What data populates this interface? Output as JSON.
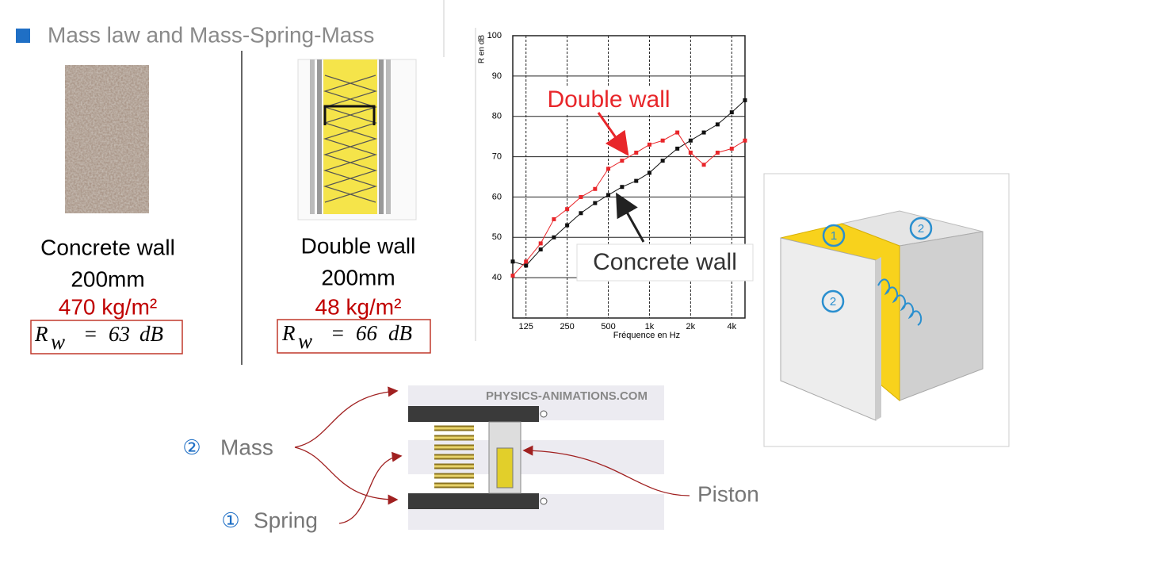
{
  "header": {
    "title": "Mass law and Mass-Spring-Mass"
  },
  "walls": [
    {
      "name": "Concrete wall",
      "thickness": "200mm",
      "mass": "470 kg/m²",
      "formula": {
        "symbol": "R",
        "subscript": "w",
        "equals": "=",
        "value": "63",
        "unit": "dB"
      }
    },
    {
      "name": "Double wall",
      "thickness": "200mm",
      "mass": "48 kg/m²",
      "formula": {
        "symbol": "R",
        "subscript": "w",
        "equals": "=",
        "value": "66",
        "unit": "dB"
      }
    }
  ],
  "chart_data": {
    "type": "line",
    "y_label": "R en dB",
    "x_label": "Fréquence en Hz",
    "log_x": true,
    "grid": true,
    "x": [
      100,
      125,
      160,
      200,
      250,
      315,
      400,
      500,
      630,
      800,
      1000,
      1250,
      1600,
      2000,
      2500,
      3150,
      4000,
      5000
    ],
    "xlim": [
      100,
      5000
    ],
    "xticks": [
      125,
      250,
      500,
      {
        "value": 1000,
        "label": "1k"
      },
      {
        "value": 2000,
        "label": "2k"
      },
      {
        "value": 4000,
        "label": "4k"
      }
    ],
    "ylim": [
      30,
      100
    ],
    "yticks": [
      40,
      50,
      60,
      70,
      80,
      90,
      100
    ],
    "series": [
      {
        "name": "Concrete wall",
        "color": "#111111",
        "values": [
          44,
          43,
          47,
          50,
          53,
          56,
          58.5,
          60.5,
          62.5,
          64,
          66,
          69,
          72,
          74,
          76,
          78,
          81,
          84
        ]
      },
      {
        "name": "Double wall",
        "color": "#e8262a",
        "values": [
          40.5,
          44,
          48.5,
          54.5,
          57,
          60,
          62,
          67,
          69,
          71,
          73,
          74,
          76,
          71,
          68,
          71,
          72,
          74
        ]
      }
    ]
  },
  "box": {
    "labels": [
      "1",
      "2",
      "2"
    ]
  },
  "animation": {
    "site": "PHYSICS-ANIMATIONS.COM"
  },
  "legend": {
    "mass_mark": "②",
    "mass": "Mass",
    "spring_mark": "①",
    "spring": "Spring",
    "piston": "Piston"
  }
}
